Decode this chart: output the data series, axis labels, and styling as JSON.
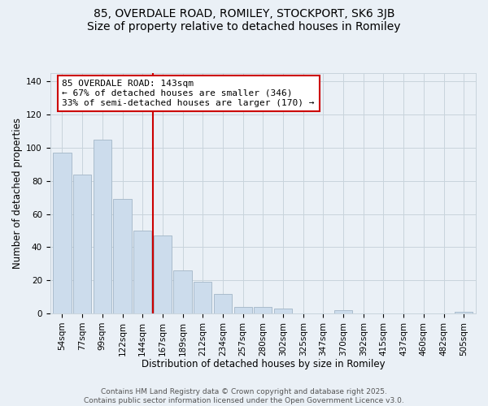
{
  "title": "85, OVERDALE ROAD, ROMILEY, STOCKPORT, SK6 3JB",
  "subtitle": "Size of property relative to detached houses in Romiley",
  "xlabel": "Distribution of detached houses by size in Romiley",
  "ylabel": "Number of detached properties",
  "bar_labels": [
    "54sqm",
    "77sqm",
    "99sqm",
    "122sqm",
    "144sqm",
    "167sqm",
    "189sqm",
    "212sqm",
    "234sqm",
    "257sqm",
    "280sqm",
    "302sqm",
    "325sqm",
    "347sqm",
    "370sqm",
    "392sqm",
    "415sqm",
    "437sqm",
    "460sqm",
    "482sqm",
    "505sqm"
  ],
  "bar_values": [
    97,
    84,
    105,
    69,
    50,
    47,
    26,
    19,
    12,
    4,
    4,
    3,
    0,
    0,
    2,
    0,
    0,
    0,
    0,
    0,
    1
  ],
  "bar_color": "#ccdcec",
  "bar_edge_color": "#aabccc",
  "vline_color": "#cc0000",
  "annotation_text": "85 OVERDALE ROAD: 143sqm\n← 67% of detached houses are smaller (346)\n33% of semi-detached houses are larger (170) →",
  "annotation_box_color": "#ffffff",
  "annotation_box_edge": "#cc0000",
  "ylim": [
    0,
    145
  ],
  "yticks": [
    0,
    20,
    40,
    60,
    80,
    100,
    120,
    140
  ],
  "footer_text": "Contains HM Land Registry data © Crown copyright and database right 2025.\nContains public sector information licensed under the Open Government Licence v3.0.",
  "background_color": "#eaf0f6",
  "plot_bg_color": "#eaf0f6",
  "grid_color": "#c8d4dc",
  "title_fontsize": 10,
  "label_fontsize": 8.5,
  "tick_fontsize": 7.5,
  "annotation_fontsize": 8,
  "footer_fontsize": 6.5
}
